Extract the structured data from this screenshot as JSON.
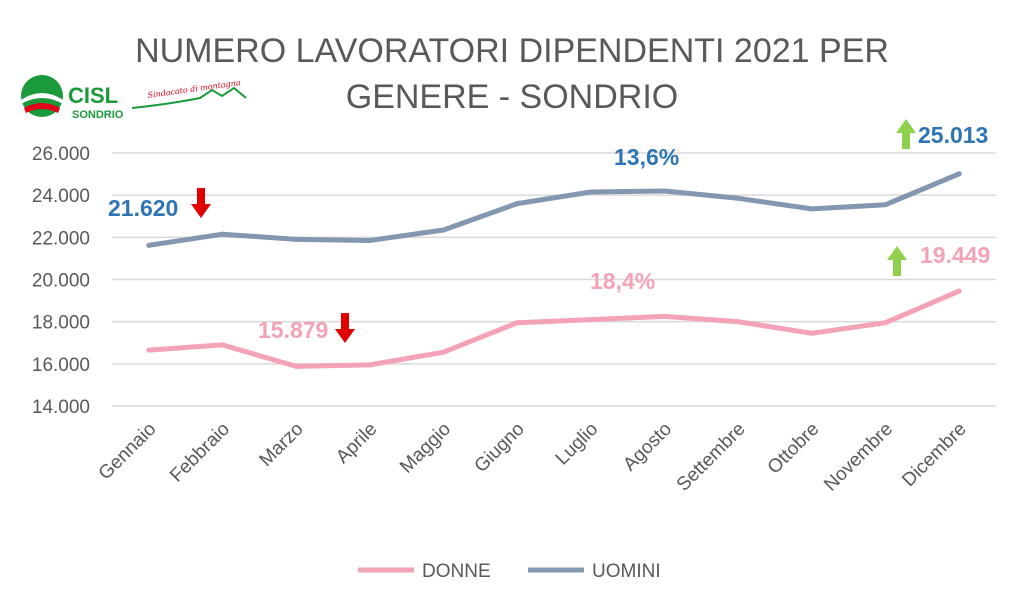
{
  "colors": {
    "donne": "#F4A2B6",
    "uomini": "#8497B0",
    "grid": "#D9D9D9",
    "text": "#595959",
    "blue_label": "#2E75B6",
    "pink_label": "#F4A2B6",
    "down_arrow": "#E00000",
    "up_arrow": "#8FD14F"
  },
  "logo": {
    "name": "CISL",
    "sub": "SONDRIO",
    "tagline": "Sindacato di montagna"
  },
  "chart_data": {
    "type": "line",
    "title_lines": [
      "NUMERO LAVORATORI DIPENDENTI 2021 PER",
      "GENERE - SONDRIO"
    ],
    "categories": [
      "Gennaio",
      "Febbraio",
      "Marzo",
      "Aprile",
      "Maggio",
      "Giugno",
      "Luglio",
      "Agosto",
      "Settembre",
      "Ottobre",
      "Novembre",
      "Dicembre"
    ],
    "series": [
      {
        "name": "DONNE",
        "color_key": "donne",
        "values": [
          16650,
          16900,
          15879,
          15950,
          16550,
          17950,
          18100,
          18250,
          18000,
          17450,
          17950,
          19449
        ]
      },
      {
        "name": "UOMINI",
        "color_key": "uomini",
        "values": [
          21620,
          22150,
          21900,
          21850,
          22350,
          23600,
          24150,
          24200,
          23850,
          23350,
          23550,
          25013
        ]
      }
    ],
    "ylim": [
      14000,
      26000
    ],
    "yticks": [
      14000,
      16000,
      18000,
      20000,
      22000,
      24000,
      26000
    ],
    "ytick_labels": [
      "14.000",
      "16.000",
      "18.000",
      "20.000",
      "22.000",
      "24.000",
      "26.000"
    ],
    "grid": true,
    "legend": "bottom-center",
    "annotations": [
      {
        "text": "21.620",
        "series": 1,
        "index": 0,
        "arrow": "down",
        "label_color": "blue_label"
      },
      {
        "text": "13,6%",
        "series": 1,
        "index": 7,
        "arrow": "none",
        "label_color": "blue_label"
      },
      {
        "text": "25.013",
        "series": 1,
        "index": 11,
        "arrow": "up",
        "label_color": "blue_label"
      },
      {
        "text": "15.879",
        "series": 0,
        "index": 2,
        "arrow": "down",
        "label_color": "pink_label"
      },
      {
        "text": "18,4%",
        "series": 0,
        "index": 7,
        "arrow": "none",
        "label_color": "pink_label"
      },
      {
        "text": "19.449",
        "series": 0,
        "index": 11,
        "arrow": "up",
        "label_color": "pink_label"
      }
    ]
  }
}
